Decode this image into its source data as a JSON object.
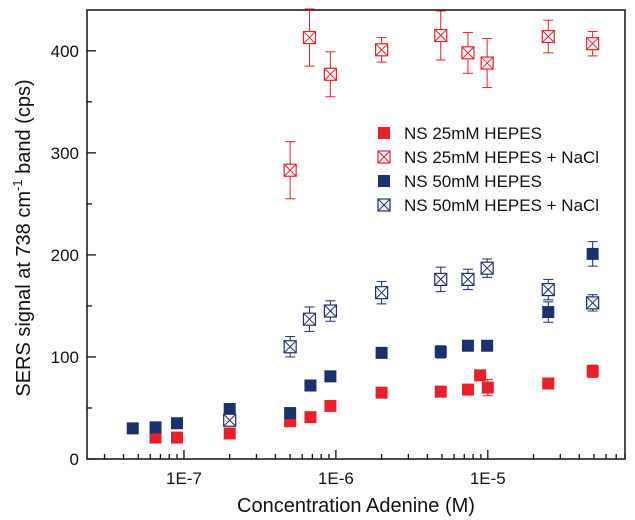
{
  "chart_data": {
    "type": "scatter",
    "title": "",
    "xlabel": "Concentration Adenine (M)",
    "ylabel_parts": [
      "SERS signal at 738 cm",
      "-1",
      " band (cps)"
    ],
    "x_scale": "log",
    "xlim": [
      2.3e-08,
      8e-05
    ],
    "ylim": [
      0,
      440
    ],
    "x_ticks": [
      {
        "value": 1e-07,
        "label": "1E-7"
      },
      {
        "value": 1e-06,
        "label": "1E-6"
      },
      {
        "value": 1e-05,
        "label": "1E-5"
      }
    ],
    "y_ticks": [
      {
        "value": 0,
        "label": "0"
      },
      {
        "value": 100,
        "label": "100"
      },
      {
        "value": 200,
        "label": "200"
      },
      {
        "value": 300,
        "label": "300"
      },
      {
        "value": 400,
        "label": "400"
      }
    ],
    "grid": false,
    "legend_position": "right",
    "series": [
      {
        "name": "NS 25mM HEPES",
        "color": "#e8202a",
        "marker": "filled-square",
        "points": [
          {
            "x": 6.5e-08,
            "y": 21,
            "err": 0
          },
          {
            "x": 9e-08,
            "y": 21,
            "err": 0
          },
          {
            "x": 2e-07,
            "y": 25,
            "err": 3
          },
          {
            "x": 5e-07,
            "y": 37,
            "err": 4
          },
          {
            "x": 6.8e-07,
            "y": 41,
            "err": 4
          },
          {
            "x": 9.2e-07,
            "y": 52,
            "err": 4
          },
          {
            "x": 2e-06,
            "y": 65,
            "err": 4
          },
          {
            "x": 4.9e-06,
            "y": 66,
            "err": 4
          },
          {
            "x": 7.4e-06,
            "y": 68,
            "err": 4
          },
          {
            "x": 8.9e-06,
            "y": 82,
            "err": 5
          },
          {
            "x": 1e-05,
            "y": 70,
            "err": 8
          },
          {
            "x": 2.5e-05,
            "y": 74,
            "err": 4
          },
          {
            "x": 4.9e-05,
            "y": 86,
            "err": 6
          }
        ]
      },
      {
        "name": "NS 25mM HEPES + NaCl",
        "color": "#e8202a",
        "marker": "open-crossed-square",
        "points": [
          {
            "x": 5e-07,
            "y": 283,
            "err": 28
          },
          {
            "x": 6.7e-07,
            "y": 413,
            "err": 28
          },
          {
            "x": 9.2e-07,
            "y": 377,
            "err": 22
          },
          {
            "x": 2e-06,
            "y": 401,
            "err": 12
          },
          {
            "x": 4.9e-06,
            "y": 415,
            "err": 24
          },
          {
            "x": 7.4e-06,
            "y": 398,
            "err": 20
          },
          {
            "x": 9.9e-06,
            "y": 388,
            "err": 24
          },
          {
            "x": 2.5e-05,
            "y": 414,
            "err": 16
          },
          {
            "x": 4.9e-05,
            "y": 407,
            "err": 12
          }
        ]
      },
      {
        "name": "NS 50mM HEPES",
        "color": "#1c2f6e",
        "marker": "filled-square",
        "points": [
          {
            "x": 4.6e-08,
            "y": 30,
            "err": 4
          },
          {
            "x": 6.5e-08,
            "y": 31,
            "err": 3
          },
          {
            "x": 9e-08,
            "y": 35,
            "err": 3
          },
          {
            "x": 2e-07,
            "y": 49,
            "err": 5
          },
          {
            "x": 5e-07,
            "y": 45,
            "err": 5
          },
          {
            "x": 6.8e-07,
            "y": 72,
            "err": 5
          },
          {
            "x": 9.2e-07,
            "y": 81,
            "err": 5
          },
          {
            "x": 2e-06,
            "y": 104,
            "err": 5
          },
          {
            "x": 4.9e-06,
            "y": 105,
            "err": 6
          },
          {
            "x": 7.4e-06,
            "y": 111,
            "err": 4
          },
          {
            "x": 9.9e-06,
            "y": 111,
            "err": 4
          },
          {
            "x": 2.5e-05,
            "y": 144,
            "err": 10
          },
          {
            "x": 4.9e-05,
            "y": 201,
            "err": 12
          }
        ]
      },
      {
        "name": "NS 50mM HEPES + NaCl",
        "color": "#1c2f6e",
        "marker": "open-crossed-square",
        "points": [
          {
            "x": 2e-07,
            "y": 38,
            "err": 5
          },
          {
            "x": 5e-07,
            "y": 110,
            "err": 10
          },
          {
            "x": 6.7e-07,
            "y": 137,
            "err": 12
          },
          {
            "x": 9.2e-07,
            "y": 145,
            "err": 10
          },
          {
            "x": 2e-06,
            "y": 163,
            "err": 11
          },
          {
            "x": 4.9e-06,
            "y": 176,
            "err": 12
          },
          {
            "x": 7.4e-06,
            "y": 176,
            "err": 10
          },
          {
            "x": 9.9e-06,
            "y": 187,
            "err": 9
          },
          {
            "x": 2.5e-05,
            "y": 166,
            "err": 10
          },
          {
            "x": 4.9e-05,
            "y": 153,
            "err": 8
          }
        ]
      }
    ]
  }
}
